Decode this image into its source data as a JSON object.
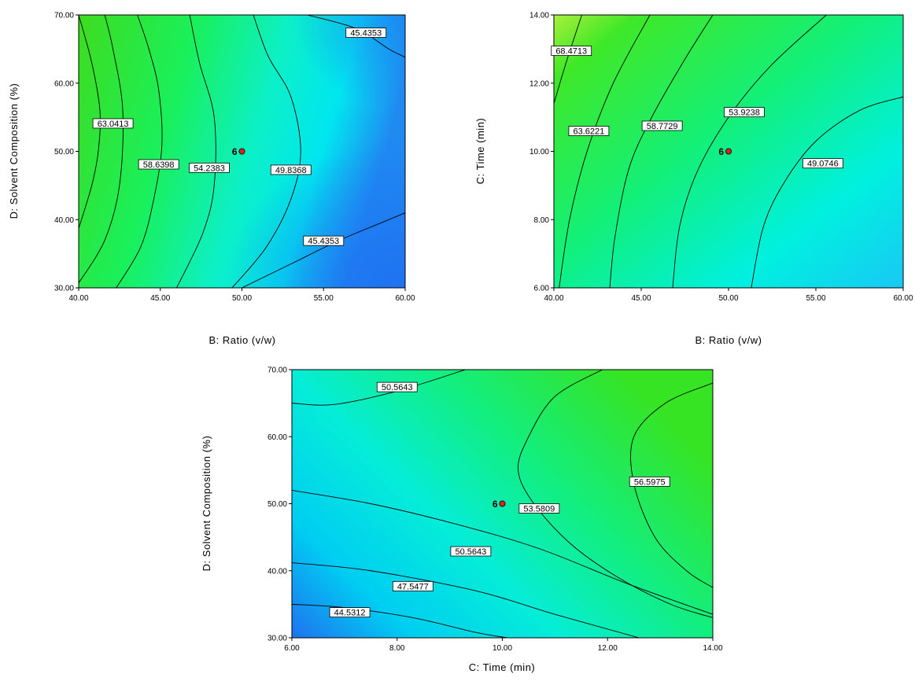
{
  "chart_data": [
    {
      "type": "contour",
      "xlabel": "B: Ratio (v/w)",
      "ylabel": "D: Solvent Composition (%)",
      "x_range": [
        40,
        60
      ],
      "y_range": [
        30,
        70
      ],
      "x_ticks": [
        "40.00",
        "45.00",
        "50.00",
        "55.00",
        "60.00"
      ],
      "y_ticks": [
        "30.00",
        "40.00",
        "50.00",
        "60.00",
        "70.00"
      ],
      "contour_labels": [
        {
          "text": "63.0413",
          "x": 42.1,
          "y": 54.1
        },
        {
          "text": "58.6398",
          "x": 44.9,
          "y": 48.1
        },
        {
          "text": "54.2383",
          "x": 48.0,
          "y": 47.6
        },
        {
          "text": "49.8368",
          "x": 53.0,
          "y": 47.3
        },
        {
          "text": "45.4353",
          "x": 57.6,
          "y": 67.4
        },
        {
          "text": "45.4353",
          "x": 55.0,
          "y": 36.9
        }
      ],
      "contour_lines": [
        [
          [
            40.0,
            38.7
          ],
          [
            40.8,
            45
          ],
          [
            41.2,
            50
          ],
          [
            41.3,
            56
          ],
          [
            40.8,
            63
          ],
          [
            40.0,
            70
          ]
        ],
        [
          [
            40.0,
            30.7
          ],
          [
            41.6,
            37
          ],
          [
            42.5,
            45
          ],
          [
            42.7,
            56
          ],
          [
            42.1,
            65
          ],
          [
            41.6,
            70
          ]
        ],
        [
          [
            42.3,
            30
          ],
          [
            43.8,
            36
          ],
          [
            44.6,
            43
          ],
          [
            45.1,
            51
          ],
          [
            44.9,
            59
          ],
          [
            44.3,
            65
          ],
          [
            43.6,
            70
          ]
        ],
        [
          [
            46.0,
            30
          ],
          [
            47.6,
            38
          ],
          [
            48.3,
            45
          ],
          [
            48.3,
            55
          ],
          [
            47.4,
            63
          ],
          [
            46.8,
            70
          ]
        ],
        [
          [
            49.4,
            30
          ],
          [
            51.5,
            36
          ],
          [
            53.0,
            43
          ],
          [
            53.6,
            50
          ],
          [
            53.0,
            58
          ],
          [
            51.6,
            64
          ],
          [
            50.7,
            70
          ]
        ],
        [
          [
            50.0,
            30
          ],
          [
            53,
            33.5
          ],
          [
            56,
            37
          ],
          [
            58.5,
            39.5
          ],
          [
            60,
            41
          ]
        ],
        [
          [
            54.0,
            70
          ],
          [
            57,
            68
          ],
          [
            59,
            65
          ],
          [
            60,
            63.8
          ]
        ]
      ],
      "design_point": {
        "x": 50,
        "y": 50,
        "label": "6"
      },
      "gradient": "green (upper-left) to cyan/blue (right)"
    },
    {
      "type": "contour",
      "xlabel": "B: Ratio (v/w)",
      "ylabel": "C: Time (min)",
      "x_range": [
        40,
        60
      ],
      "y_range": [
        6,
        14
      ],
      "x_ticks": [
        "40.00",
        "45.00",
        "50.00",
        "55.00",
        "60.00"
      ],
      "y_ticks": [
        "6.00",
        "8.00",
        "10.00",
        "12.00",
        "14.00"
      ],
      "contour_labels": [
        {
          "text": "68.4713",
          "x": 41.0,
          "y": 12.95
        },
        {
          "text": "63.6221",
          "x": 42.0,
          "y": 10.6
        },
        {
          "text": "58.7729",
          "x": 46.2,
          "y": 10.75
        },
        {
          "text": "53.9238",
          "x": 50.9,
          "y": 11.15
        },
        {
          "text": "49.0746",
          "x": 55.4,
          "y": 9.65
        }
      ],
      "contour_lines": [
        [
          [
            40.0,
            11.4
          ],
          [
            40.7,
            12.6
          ],
          [
            41.6,
            14
          ]
        ],
        [
          [
            40.3,
            6
          ],
          [
            40.9,
            8
          ],
          [
            41.9,
            10
          ],
          [
            43.4,
            12
          ],
          [
            45.5,
            14
          ]
        ],
        [
          [
            43.2,
            6
          ],
          [
            43.5,
            7.5
          ],
          [
            44.3,
            9.5
          ],
          [
            45.6,
            11
          ],
          [
            47.5,
            12.7
          ],
          [
            49.1,
            14
          ]
        ],
        [
          [
            46.8,
            6
          ],
          [
            47.2,
            7.8
          ],
          [
            48.2,
            9.4
          ],
          [
            50,
            11
          ],
          [
            52.4,
            12.5
          ],
          [
            55.6,
            14
          ]
        ],
        [
          [
            51.3,
            6
          ],
          [
            52,
            7.8
          ],
          [
            53.2,
            9.1
          ],
          [
            55,
            10.3
          ],
          [
            57.5,
            11.2
          ],
          [
            60,
            11.6
          ]
        ]
      ],
      "design_point": {
        "x": 50,
        "y": 10,
        "label": "6"
      },
      "gradient": "yellow-green (upper-left) to cyan (lower-right)"
    },
    {
      "type": "contour",
      "xlabel": "C: Time (min)",
      "ylabel": "D: Solvent Composition (%)",
      "x_range": [
        6,
        14
      ],
      "y_range": [
        30,
        70
      ],
      "x_ticks": [
        "6.00",
        "8.00",
        "10.00",
        "12.00",
        "14.00"
      ],
      "y_ticks": [
        "30.00",
        "40.00",
        "50.00",
        "60.00",
        "70.00"
      ],
      "contour_labels": [
        {
          "text": "50.5643",
          "x": 8.0,
          "y": 67.4
        },
        {
          "text": "56.5975",
          "x": 12.8,
          "y": 53.3
        },
        {
          "text": "53.5809",
          "x": 10.7,
          "y": 49.3
        },
        {
          "text": "50.5643",
          "x": 9.4,
          "y": 42.9
        },
        {
          "text": "47.5477",
          "x": 8.3,
          "y": 37.7
        },
        {
          "text": "44.5312",
          "x": 7.1,
          "y": 33.8
        }
      ],
      "contour_lines": [
        [
          [
            6.0,
            65
          ],
          [
            6.8,
            64.8
          ],
          [
            8.0,
            66.8
          ],
          [
            9.3,
            70
          ]
        ],
        [
          [
            11.9,
            70
          ],
          [
            11,
            66
          ],
          [
            10.5,
            60
          ],
          [
            10.3,
            55
          ],
          [
            10.6,
            50
          ],
          [
            11.3,
            44
          ],
          [
            12.2,
            39
          ],
          [
            13.2,
            35
          ],
          [
            14,
            33
          ]
        ],
        [
          [
            14,
            68
          ],
          [
            13.1,
            65
          ],
          [
            12.5,
            60
          ],
          [
            12.5,
            53
          ],
          [
            12.9,
            45
          ],
          [
            13.5,
            40
          ],
          [
            14,
            37.5
          ]
        ],
        [
          [
            6.0,
            52
          ],
          [
            7.5,
            50
          ],
          [
            9.1,
            47
          ],
          [
            10.7,
            43.3
          ],
          [
            12.4,
            38
          ],
          [
            14,
            33.5
          ]
        ],
        [
          [
            6.0,
            41.2
          ],
          [
            7.5,
            40
          ],
          [
            9.5,
            37
          ],
          [
            11,
            33.5
          ],
          [
            12.6,
            30
          ]
        ],
        [
          [
            6.0,
            35
          ],
          [
            7.0,
            34.5
          ],
          [
            8.3,
            33
          ],
          [
            9.5,
            30.8
          ],
          [
            10.1,
            30
          ]
        ]
      ],
      "design_point": {
        "x": 10,
        "y": 50,
        "label": "6"
      },
      "gradient": "blue (lower-left) to green (right)"
    }
  ]
}
